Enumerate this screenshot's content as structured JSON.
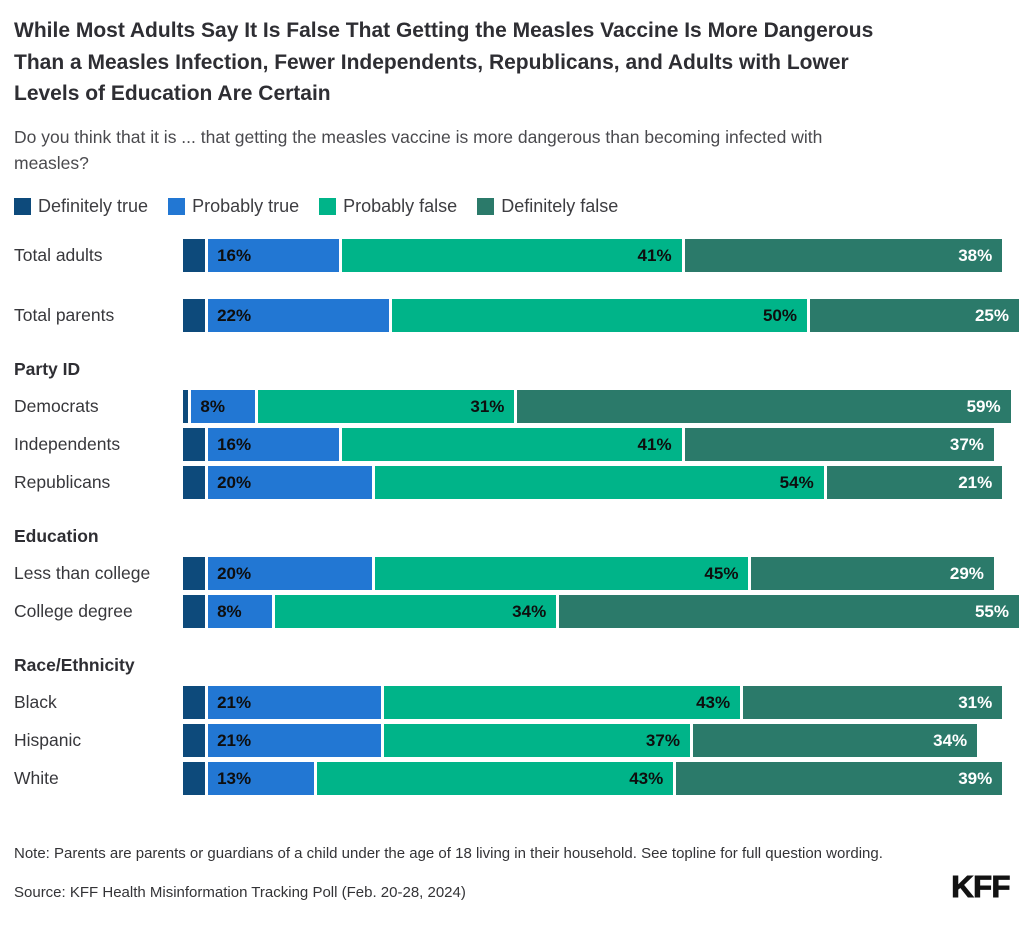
{
  "header": {
    "title": "While Most Adults Say It Is False That Getting the Measles Vaccine Is More Dangerous Than a Measles Infection, Fewer Independents, Republicans, and Adults with Lower Levels of Education Are Certain",
    "subtitle": "Do you think that it is ... that getting the measles vaccine is more dangerous than becoming infected with measles?"
  },
  "legend": [
    {
      "label": "Definitely true",
      "color": "#0d4a7b"
    },
    {
      "label": "Probably true",
      "color": "#2277d3"
    },
    {
      "label": "Probably false",
      "color": "#00b489"
    },
    {
      "label": "Definitely false",
      "color": "#2b7a6a"
    }
  ],
  "chart_data": {
    "type": "bar",
    "variant": "horizontal-stacked",
    "unit": "percent",
    "xlim": [
      0,
      100
    ],
    "series": [
      "Definitely true",
      "Probably true",
      "Probably false",
      "Definitely false"
    ],
    "colors": [
      "#0d4a7b",
      "#2277d3",
      "#00b489",
      "#2b7a6a"
    ],
    "groups": [
      {
        "header": "",
        "rows": [
          {
            "label": "Total adults",
            "values": [
              3,
              16,
              41,
              38
            ],
            "display": [
              "",
              "16%",
              "41%",
              "38%"
            ]
          }
        ]
      },
      {
        "header": "",
        "rows": [
          {
            "label": "Total parents",
            "values": [
              3,
              22,
              50,
              25
            ],
            "display": [
              "",
              "22%",
              "50%",
              "25%"
            ]
          }
        ]
      },
      {
        "header": "Party ID",
        "rows": [
          {
            "label": "Democrats",
            "values": [
              1,
              8,
              31,
              59
            ],
            "display": [
              "",
              "8%",
              "31%",
              "59%"
            ]
          },
          {
            "label": "Independents",
            "values": [
              3,
              16,
              41,
              37
            ],
            "display": [
              "",
              "16%",
              "41%",
              "37%"
            ]
          },
          {
            "label": "Republicans",
            "values": [
              3,
              20,
              54,
              21
            ],
            "display": [
              "",
              "20%",
              "54%",
              "21%"
            ]
          }
        ]
      },
      {
        "header": "Education",
        "rows": [
          {
            "label": "Less than college",
            "values": [
              3,
              20,
              45,
              29
            ],
            "display": [
              "",
              "20%",
              "45%",
              "29%"
            ]
          },
          {
            "label": "College degree",
            "values": [
              3,
              8,
              34,
              55
            ],
            "display": [
              "",
              "8%",
              "34%",
              "55%"
            ]
          }
        ]
      },
      {
        "header": "Race/Ethnicity",
        "rows": [
          {
            "label": "Black",
            "values": [
              3,
              21,
              43,
              31
            ],
            "display": [
              "",
              "21%",
              "43%",
              "31%"
            ]
          },
          {
            "label": "Hispanic",
            "values": [
              3,
              21,
              37,
              34
            ],
            "display": [
              "",
              "21%",
              "37%",
              "34%"
            ]
          },
          {
            "label": "White",
            "values": [
              3,
              13,
              43,
              39
            ],
            "display": [
              "",
              "13%",
              "43%",
              "39%"
            ]
          }
        ]
      }
    ]
  },
  "footer": {
    "note": "Note: Parents are parents or guardians of a child under the age of 18 living in their household. See topline for full question wording.",
    "source": "Source: KFF Health Misinformation Tracking Poll (Feb. 20-28, 2024)",
    "logo": "KFF"
  }
}
